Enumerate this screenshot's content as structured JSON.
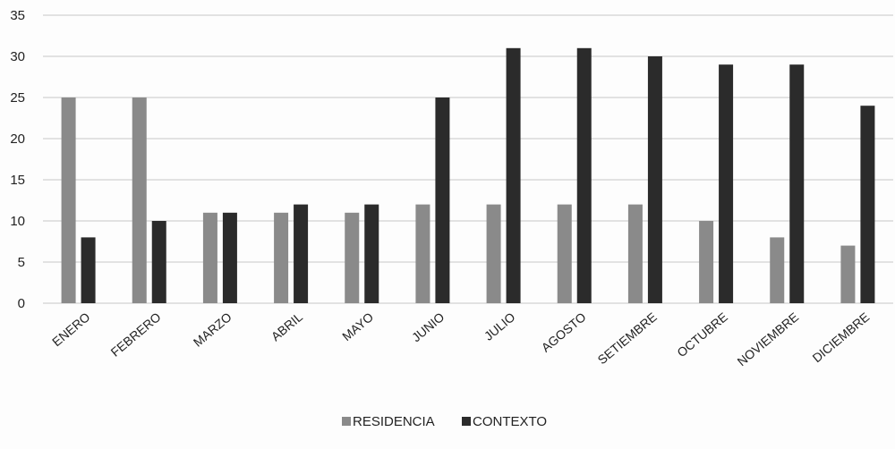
{
  "chart_data": {
    "type": "bar",
    "title": "",
    "xlabel": "",
    "ylabel": "",
    "ylim": [
      0,
      35
    ],
    "yticks": [
      0,
      5,
      10,
      15,
      20,
      25,
      30,
      35
    ],
    "grid": true,
    "legend_position": "bottom",
    "categories": [
      "ENERO",
      "FEBRERO",
      "MARZO",
      "ABRIL",
      "MAYO",
      "JUNIO",
      "JULIO",
      "AGOSTO",
      "SETIEMBRE",
      "OCTUBRE",
      "NOVIEMBRE",
      "DICIEMBRE"
    ],
    "series": [
      {
        "name": "RESIDENCIA",
        "color": "#8a8a8a",
        "values": [
          25,
          25,
          11,
          11,
          11,
          12,
          12,
          12,
          12,
          10,
          8,
          7
        ]
      },
      {
        "name": "CONTEXTO",
        "color": "#2b2b2b",
        "values": [
          8,
          10,
          11,
          12,
          12,
          25,
          31,
          31,
          30,
          29,
          29,
          24
        ]
      }
    ]
  }
}
